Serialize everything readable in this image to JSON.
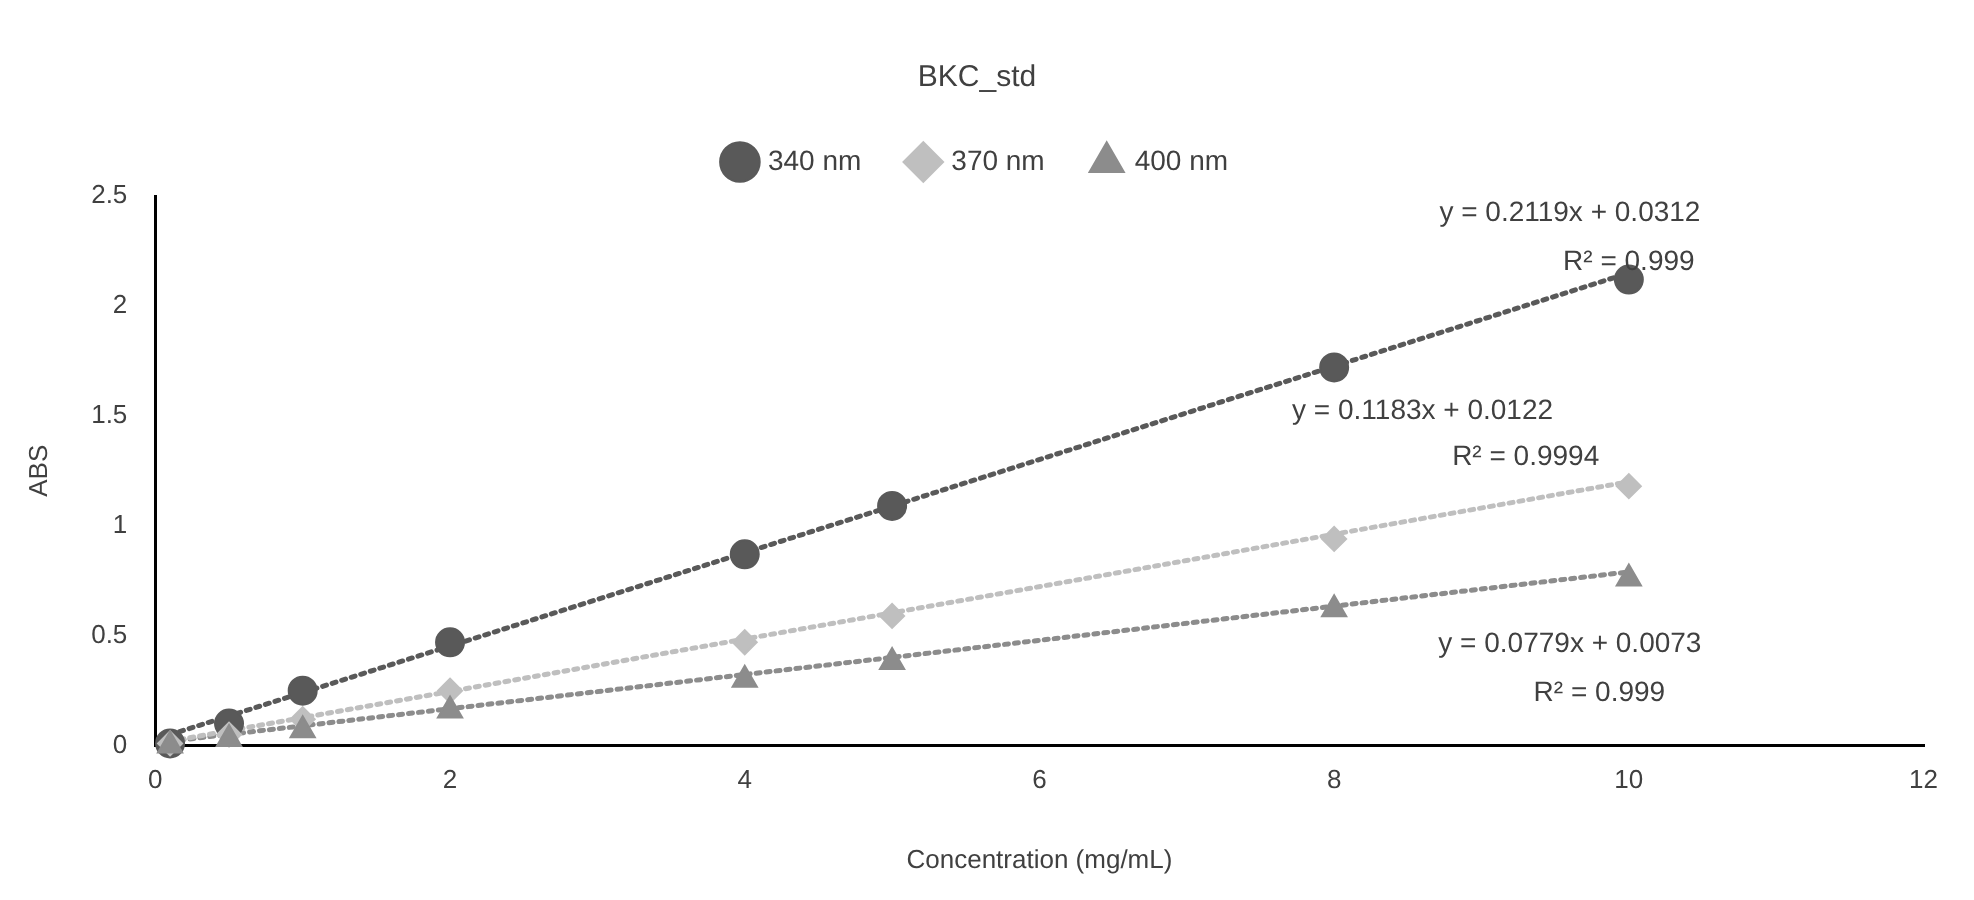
{
  "chart_data": {
    "type": "scatter",
    "title": "BKC_std",
    "xlabel": "Concentration (mg/mL)",
    "ylabel": "ABS",
    "xlim": [
      0,
      12
    ],
    "xticks": [
      0,
      2,
      4,
      6,
      8,
      10,
      12
    ],
    "ylim": [
      0,
      2.5
    ],
    "yticks": [
      0,
      0.5,
      1,
      1.5,
      2,
      2.5
    ],
    "grid": false,
    "legend": "top",
    "series": [
      {
        "name": "340 nm",
        "type": "scatter",
        "marker": "circle",
        "color": "#595959",
        "x": [
          0.1,
          0.5,
          1,
          2,
          4,
          5,
          8,
          10
        ],
        "values": [
          0.01,
          0.1,
          0.25,
          0.47,
          0.87,
          1.09,
          1.72,
          2.12
        ]
      },
      {
        "name": "370 nm",
        "type": "scatter",
        "marker": "diamond",
        "color": "#bfbfbf",
        "x": [
          0.1,
          0.5,
          1,
          2,
          4,
          5,
          8,
          10
        ],
        "values": [
          0.01,
          0.05,
          0.12,
          0.25,
          0.47,
          0.59,
          0.94,
          1.18
        ]
      },
      {
        "name": "400 nm",
        "type": "scatter",
        "marker": "triangle",
        "color": "#8c8c8c",
        "x": [
          0.1,
          0.5,
          1,
          2,
          4,
          5,
          8,
          10
        ],
        "values": [
          0,
          0.03,
          0.07,
          0.16,
          0.3,
          0.38,
          0.62,
          0.76
        ]
      },
      {
        "type": "line",
        "marker": "none",
        "line_style": "dotted",
        "color": "#595959",
        "x": [
          0.1,
          10
        ],
        "values": [
          0.05,
          2.15
        ]
      },
      {
        "type": "line",
        "marker": "none",
        "line_style": "dotted",
        "color": "#bfbfbf",
        "x": [
          0.1,
          10
        ],
        "values": [
          0.02,
          1.2
        ]
      },
      {
        "type": "line",
        "marker": "none",
        "line_style": "dotted",
        "color": "#8c8c8c",
        "x": [
          0.1,
          10
        ],
        "values": [
          0.02,
          0.79
        ]
      }
    ],
    "annotations": [
      "y = 0.2119x + 0.0312",
      "R² = 0.999",
      "y = 0.1183x + 0.0122",
      "R² = 0.9994",
      "y = 0.0779x + 0.0073",
      "R² = 0.999"
    ]
  }
}
